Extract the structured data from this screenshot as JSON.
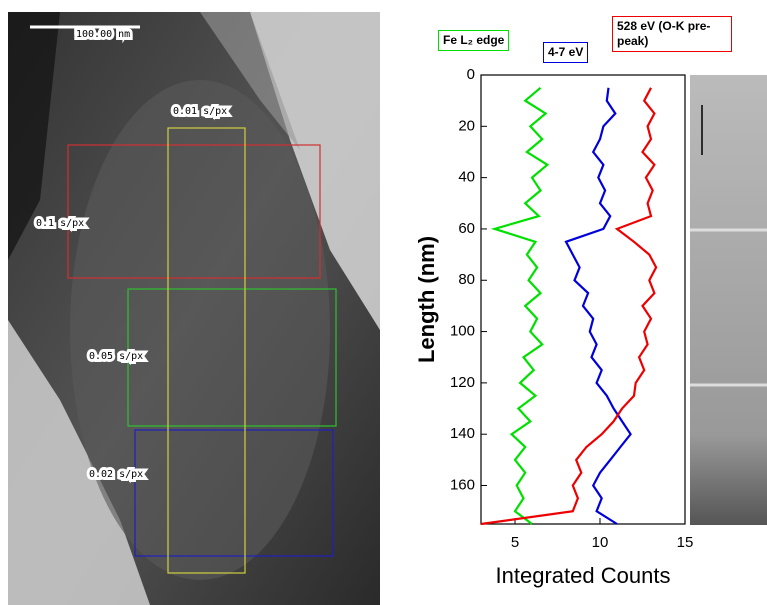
{
  "image_annotations": {
    "scale_bar": "100.00 nm",
    "regions": [
      "0.01 s/px",
      "0.1 s/px",
      "0.05 s/px",
      "0.02 s/px"
    ]
  },
  "chart_data": {
    "type": "line",
    "xlabel": "Integrated Counts",
    "ylabel": "Length (nm)",
    "xlim": [
      3,
      15
    ],
    "xticks": [
      5,
      10,
      15
    ],
    "ylim": [
      175,
      0
    ],
    "yticks": [
      0,
      20,
      40,
      60,
      80,
      100,
      120,
      140,
      160
    ],
    "y": [
      5,
      10,
      15,
      20,
      25,
      30,
      35,
      40,
      45,
      50,
      55,
      60,
      65,
      70,
      75,
      80,
      85,
      90,
      95,
      100,
      105,
      110,
      115,
      120,
      125,
      130,
      135,
      140,
      145,
      150,
      155,
      160,
      165,
      170,
      175
    ],
    "series": [
      {
        "name": "Fe L₂ edge",
        "color": "#00e000",
        "values": [
          6.5,
          5.6,
          6.8,
          5.9,
          6.6,
          5.7,
          6.9,
          6.0,
          6.5,
          5.6,
          6.4,
          3.8,
          6.2,
          5.7,
          6.3,
          5.8,
          6.5,
          5.6,
          6.3,
          5.9,
          6.6,
          5.5,
          6.1,
          5.3,
          6.2,
          5.2,
          5.9,
          4.8,
          5.6,
          5.0,
          5.6,
          5.1,
          5.5,
          5.0,
          6.0
        ]
      },
      {
        "name": "4-7 eV",
        "color": "#0000dd",
        "values": [
          10.5,
          10.4,
          10.9,
          10.2,
          10.0,
          9.6,
          10.2,
          9.9,
          10.3,
          10.0,
          10.6,
          10.2,
          8.0,
          8.4,
          8.8,
          8.5,
          9.3,
          9.0,
          9.6,
          9.4,
          9.8,
          9.5,
          10.1,
          9.8,
          10.4,
          10.8,
          11.3,
          11.8,
          11.2,
          10.6,
          10.0,
          9.6,
          10.1,
          9.8,
          11.0
        ]
      },
      {
        "name": "528 eV (O-K pre-peak)",
        "color": "#ee0000",
        "values": [
          13.0,
          12.6,
          13.2,
          12.8,
          13.0,
          12.5,
          13.2,
          12.7,
          13.1,
          12.8,
          13.0,
          11.0,
          12.0,
          12.9,
          13.3,
          12.9,
          13.2,
          12.5,
          13.0,
          12.6,
          12.8,
          12.3,
          12.6,
          12.1,
          12.0,
          11.3,
          10.8,
          10.1,
          9.2,
          8.6,
          8.9,
          8.4,
          8.7,
          8.4,
          3.0
        ]
      }
    ]
  }
}
